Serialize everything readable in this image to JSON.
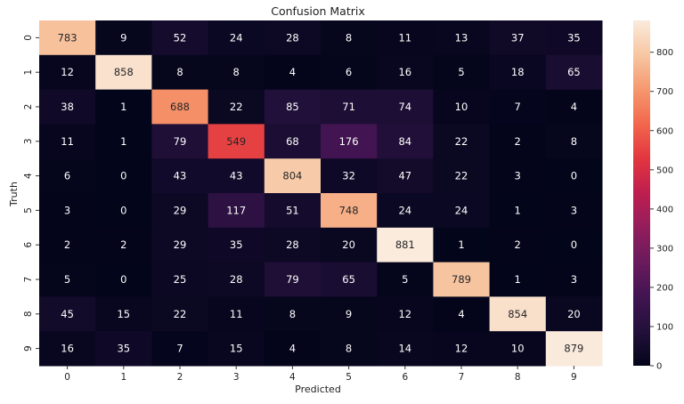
{
  "chart_data": {
    "type": "heatmap",
    "title": "Confusion Matrix",
    "xlabel": "Predicted",
    "ylabel": "Truth",
    "x_categories": [
      "0",
      "1",
      "2",
      "3",
      "4",
      "5",
      "6",
      "7",
      "8",
      "9"
    ],
    "y_categories": [
      "0",
      "1",
      "2",
      "3",
      "4",
      "5",
      "6",
      "7",
      "8",
      "9"
    ],
    "values": [
      [
        783,
        9,
        52,
        24,
        28,
        8,
        11,
        13,
        37,
        35
      ],
      [
        12,
        858,
        8,
        8,
        4,
        6,
        16,
        5,
        18,
        65
      ],
      [
        38,
        1,
        688,
        22,
        85,
        71,
        74,
        10,
        7,
        4
      ],
      [
        11,
        1,
        79,
        549,
        68,
        176,
        84,
        22,
        2,
        8
      ],
      [
        6,
        0,
        43,
        43,
        804,
        32,
        47,
        22,
        3,
        0
      ],
      [
        3,
        0,
        29,
        117,
        51,
        748,
        24,
        24,
        1,
        3
      ],
      [
        2,
        2,
        29,
        35,
        28,
        20,
        881,
        1,
        2,
        0
      ],
      [
        5,
        0,
        25,
        28,
        79,
        65,
        5,
        789,
        1,
        3
      ],
      [
        45,
        15,
        22,
        11,
        8,
        9,
        12,
        4,
        854,
        20
      ],
      [
        16,
        35,
        7,
        15,
        4,
        8,
        14,
        12,
        10,
        879
      ]
    ],
    "colorbar": {
      "ticks": [
        0,
        100,
        200,
        300,
        400,
        500,
        600,
        700,
        800
      ],
      "range": [
        0,
        881
      ],
      "colormap": "rocket"
    },
    "grid": false
  }
}
